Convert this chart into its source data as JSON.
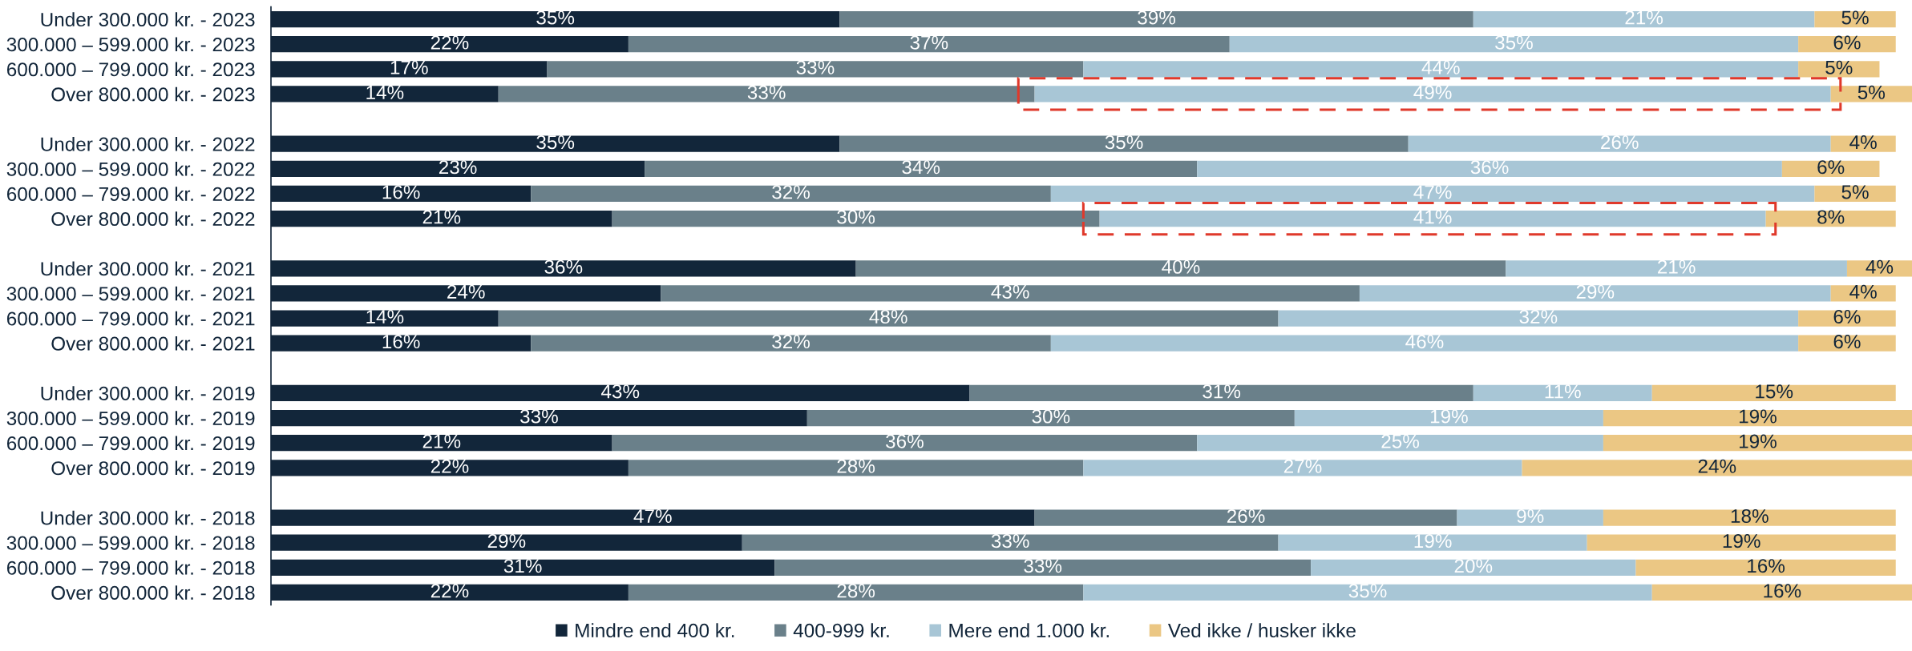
{
  "chart_data": {
    "type": "bar",
    "orientation": "horizontal",
    "stacked": true,
    "categories": [
      "Under 300.000 kr. - 2023",
      "300.000 – 599.000 kr. - 2023",
      "600.000 – 799.000 kr. - 2023",
      "Over 800.000 kr. - 2023",
      null,
      "Under 300.000 kr. - 2022",
      "300.000 – 599.000 kr. - 2022",
      "600.000 – 799.000 kr. - 2022",
      "Over 800.000 kr. - 2022",
      null,
      "Under 300.000 kr. - 2021",
      "300.000 – 599.000 kr. - 2021",
      "600.000 – 799.000 kr. - 2021",
      "Over 800.000 kr. - 2021",
      null,
      "Under 300.000 kr. - 2019",
      "300.000 – 599.000 kr. - 2019",
      "600.000 – 799.000 kr. - 2019",
      "Over 800.000 kr. - 2019",
      null,
      "Under 300.000 kr. - 2018",
      "300.000 – 599.000 kr. - 2018",
      "600.000 – 799.000 kr. - 2018",
      "Over 800.000 kr. - 2018"
    ],
    "xlim": [
      0,
      101
    ],
    "tick_labels": "y",
    "legend": "bottom",
    "series": [
      {
        "name": "Mindre end 400 kr.",
        "color": "#12263a",
        "values": [
          35,
          22,
          17,
          14,
          null,
          35,
          23,
          16,
          21,
          null,
          36,
          24,
          14,
          16,
          null,
          43,
          33,
          21,
          22,
          null,
          47,
          29,
          31,
          22
        ],
        "value_labels": [
          "35%",
          "22%",
          "17%",
          "14%",
          null,
          "35%",
          "23%",
          "16%",
          "21%",
          null,
          "36%",
          "24%",
          "14%",
          "16%",
          null,
          "43%",
          "33%",
          "21%",
          "22%",
          null,
          "47%",
          "29%",
          "31%",
          "22%"
        ]
      },
      {
        "name": "400-999 kr.",
        "color": "#6a808a",
        "values": [
          39,
          37,
          33,
          33,
          null,
          35,
          34,
          32,
          30,
          null,
          40,
          43,
          48,
          32,
          null,
          31,
          30,
          36,
          28,
          null,
          26,
          33,
          33,
          28
        ],
        "value_labels": [
          "39%",
          "37%",
          "33%",
          "33%",
          null,
          "35%",
          "34%",
          "32%",
          "30%",
          null,
          "40%",
          "43%",
          "48%",
          "32%",
          null,
          "31%",
          "30%",
          "36%",
          "28%",
          null,
          "26%",
          "33%",
          "33%",
          "28%"
        ]
      },
      {
        "name": "Mere end 1.000 kr.",
        "color": "#a8c6d6",
        "values": [
          21,
          35,
          44,
          49,
          null,
          26,
          36,
          47,
          41,
          null,
          21,
          29,
          32,
          46,
          null,
          11,
          19,
          25,
          27,
          null,
          9,
          19,
          20,
          35
        ],
        "value_labels": [
          "21%",
          "35%",
          "44%",
          "49%",
          null,
          "26%",
          "36%",
          "47%",
          "41%",
          null,
          "21%",
          "29%",
          "32%",
          "46%",
          null,
          "11%",
          "19%",
          "25%",
          "27%",
          null,
          "9%",
          "19%",
          "20%",
          "35%"
        ]
      },
      {
        "name": "Ved ikke / husker ikke",
        "color": "#ebc784",
        "values": [
          5,
          6,
          5,
          5,
          null,
          4,
          6,
          5,
          8,
          null,
          4,
          4,
          6,
          6,
          null,
          15,
          19,
          19,
          24,
          null,
          18,
          19,
          16,
          16
        ],
        "value_labels": [
          "5%",
          "6%",
          "5%",
          "5%",
          null,
          "4%",
          "6%",
          "5%",
          "8%",
          null,
          "4%",
          "4%",
          "6%",
          "6%",
          null,
          "15%",
          "19%",
          "19%",
          "24%",
          null,
          "18%",
          "19%",
          "16%",
          "16%"
        ]
      }
    ]
  }
}
